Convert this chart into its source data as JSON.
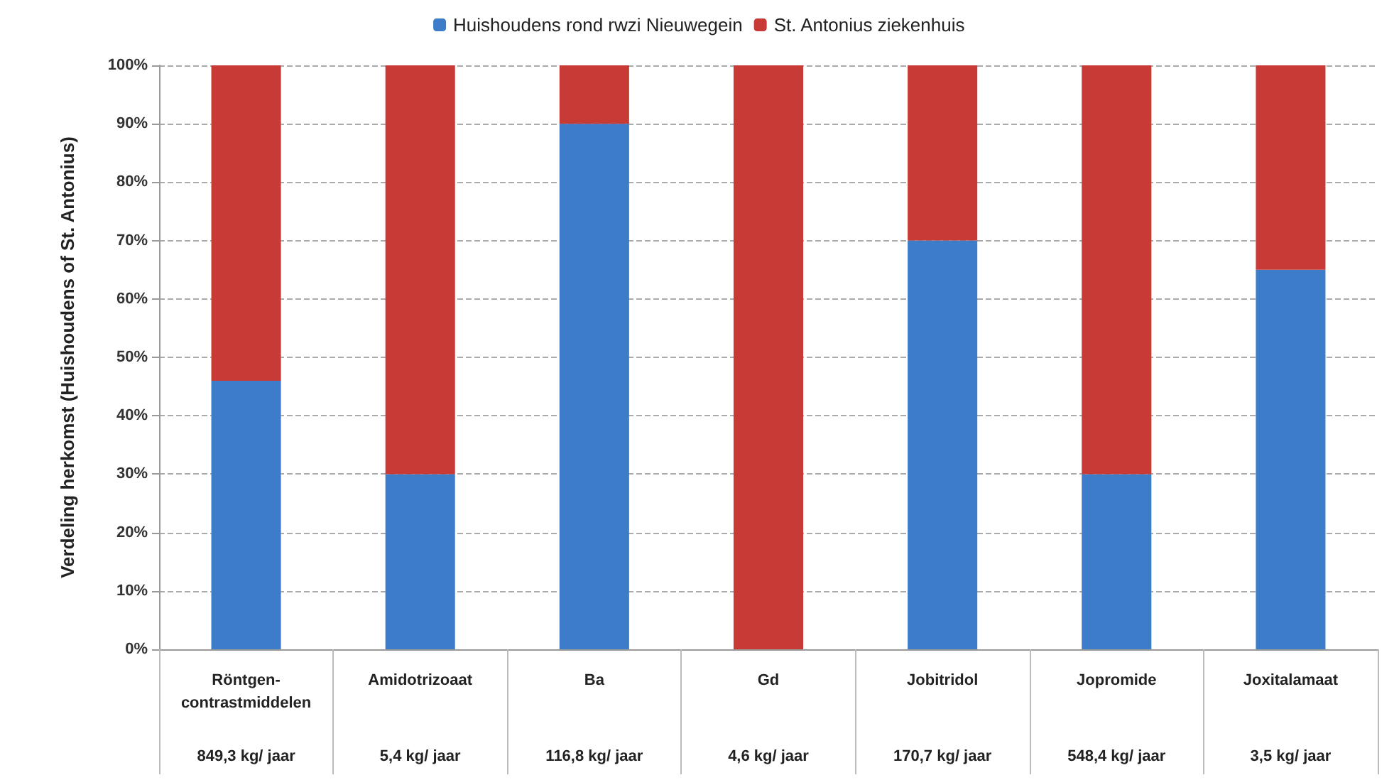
{
  "chart_data": {
    "type": "bar",
    "stacked": true,
    "ylabel": "Verdeling herkomst (Huishoudens of St. Antonius)",
    "categories": [
      "Röntgen-\ncontrastmiddelen",
      "Amidotrizoaat",
      "Ba",
      "Gd",
      "Jobitridol",
      "Jopromide",
      "Joxitalamaat"
    ],
    "series": [
      {
        "name": "Huishoudens rond rwzi Nieuwegein",
        "color": "#3d7cc9",
        "values": [
          46,
          30,
          90,
          0,
          70,
          30,
          65
        ]
      },
      {
        "name": "St. Antonius ziekenhuis",
        "color": "#c83a36",
        "values": [
          54,
          70,
          10,
          100,
          30,
          70,
          35
        ]
      }
    ],
    "ylim": [
      0,
      100
    ],
    "yticks": [
      {
        "value": 0,
        "label": "0%"
      },
      {
        "value": 10,
        "label": "10%"
      },
      {
        "value": 20,
        "label": "20%"
      },
      {
        "value": 30,
        "label": "30%"
      },
      {
        "value": 40,
        "label": "40%"
      },
      {
        "value": 50,
        "label": "50%"
      },
      {
        "value": 60,
        "label": "60%"
      },
      {
        "value": 70,
        "label": "70%"
      },
      {
        "value": 80,
        "label": "80%"
      },
      {
        "value": 90,
        "label": "90%"
      },
      {
        "value": 100,
        "label": "100%"
      }
    ],
    "grid": "y",
    "legend": "top",
    "annotations": [
      "849,3 kg/ jaar",
      "5,4 kg/ jaar",
      "116,8 kg/ jaar",
      "4,6 kg/ jaar",
      "170,7 kg/ jaar",
      "548,4 kg/ jaar",
      "3,5 kg/ jaar"
    ]
  }
}
